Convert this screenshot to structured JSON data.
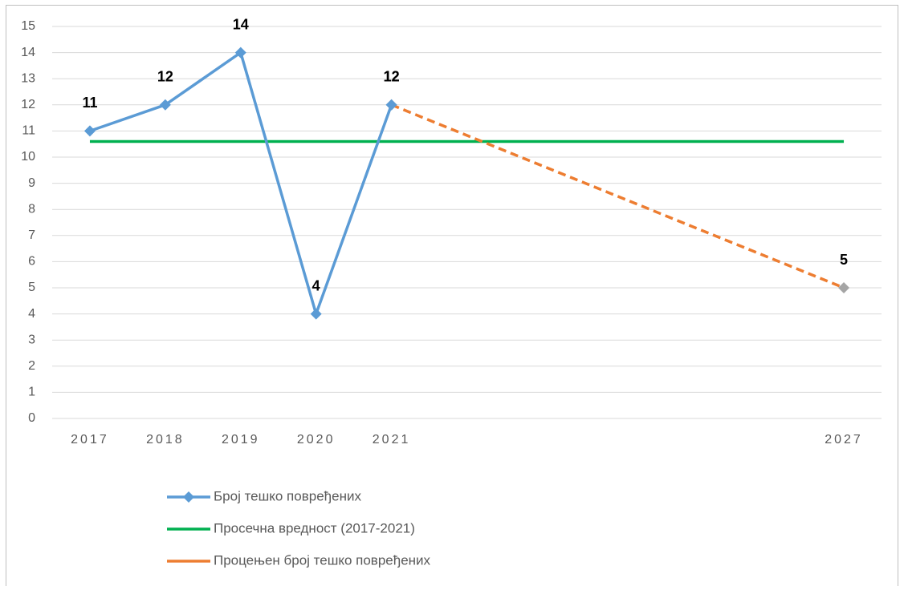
{
  "chart_data": {
    "type": "line",
    "x": [
      2017,
      2018,
      2019,
      2020,
      2021,
      2027
    ],
    "xlim": [
      2016.5,
      2027.5
    ],
    "xticks": [
      2017,
      2018,
      2019,
      2020,
      2021,
      2027
    ],
    "ylim": [
      0,
      15
    ],
    "yticks": [
      0,
      1,
      2,
      3,
      4,
      5,
      6,
      7,
      8,
      9,
      10,
      11,
      12,
      13,
      14,
      15
    ],
    "grid": true,
    "legend": "bottom",
    "series": [
      {
        "name": "Број тешко повређених",
        "color": "#5b9bd5",
        "marker_color": "#5b9bd5",
        "dashed": false,
        "data_labels": true,
        "values": [
          11,
          12,
          14,
          4,
          12,
          null
        ]
      },
      {
        "name": "Просечна вредност (2017-2021)",
        "color": "#00b050",
        "dashed": false,
        "data_labels": false,
        "values": [
          10.6,
          10.6,
          10.6,
          10.6,
          10.6,
          10.6
        ]
      },
      {
        "name": "Процењен број тешко повређених",
        "color": "#ed7d31",
        "marker_color": "#a5a5a5",
        "dashed": true,
        "data_labels": true,
        "values": [
          null,
          null,
          null,
          null,
          12,
          5
        ]
      }
    ]
  }
}
